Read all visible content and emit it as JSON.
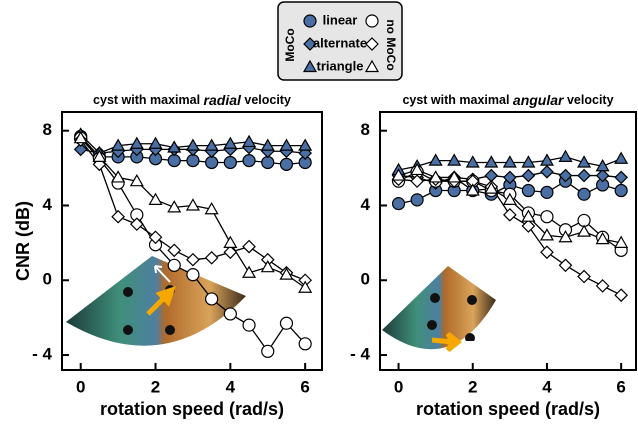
{
  "legend": {
    "groups": [
      "MoCo",
      "no MoCo"
    ],
    "entries": [
      "linear",
      "alternate",
      "triangle"
    ]
  },
  "chart_data": [
    {
      "type": "line",
      "title": [
        "cyst with maximal",
        "radial",
        "velocity"
      ],
      "xlabel": "rotation speed  (rad/s)",
      "ylabel": "CNR  (dB)",
      "x": [
        0,
        0.5,
        1,
        1.5,
        2,
        2.5,
        3,
        3.5,
        4,
        4.5,
        5,
        5.5,
        6
      ],
      "xlim": [
        -0.5,
        6.45
      ],
      "ylim": [
        -4.8,
        9
      ],
      "xticks": [
        0,
        2,
        4,
        6
      ],
      "yticks": [
        8,
        4,
        0,
        {
          "value": -4,
          "label": "- 4"
        }
      ],
      "series": [
        {
          "marker": "circle",
          "filled": true,
          "color": "#4a6fa5",
          "values": [
            7.7,
            6.6,
            6.6,
            6.6,
            6.5,
            6.4,
            6.4,
            6.3,
            6.3,
            6.4,
            6.3,
            6.2,
            6.3
          ]
        },
        {
          "marker": "diamond",
          "filled": true,
          "color": "#4a6fa5",
          "values": [
            7.0,
            6.8,
            6.9,
            7.0,
            7.0,
            7.0,
            7.0,
            6.9,
            7.0,
            7.1,
            6.9,
            6.9,
            6.8
          ]
        },
        {
          "marker": "triangle",
          "filled": true,
          "color": "#4a6fa5",
          "values": [
            7.8,
            6.8,
            7.2,
            7.3,
            7.3,
            7.1,
            7.2,
            7.2,
            7.3,
            7.4,
            7.2,
            7.2,
            7.2
          ]
        },
        {
          "marker": "circle",
          "filled": false,
          "color": "#ffffff",
          "values": [
            7.6,
            6.5,
            5.2,
            3.5,
            1.9,
            0.8,
            0.3,
            -1,
            -1.8,
            -2.4,
            -3.8,
            -2.3,
            -3.4
          ]
        },
        {
          "marker": "diamond",
          "filled": false,
          "color": "#ffffff",
          "values": [
            7.5,
            6.2,
            3.4,
            3.0,
            2.3,
            1.6,
            1.1,
            1.2,
            1.5,
            1.8,
            1.1,
            0.4,
            0.0
          ]
        },
        {
          "marker": "triangle",
          "filled": false,
          "color": "#ffffff",
          "values": [
            7.6,
            6.6,
            5.5,
            5.3,
            4.3,
            3.9,
            4.0,
            3.8,
            2.0,
            0.4,
            0.7,
            0.3,
            -0.4
          ]
        }
      ]
    },
    {
      "type": "line",
      "title": [
        "cyst with maximal",
        "angular",
        "velocity"
      ],
      "xlabel": "rotation speed  (rad/s)",
      "x": [
        0,
        0.5,
        1,
        1.5,
        2,
        2.5,
        3,
        3.5,
        4,
        4.5,
        5,
        5.5,
        6
      ],
      "xlim": [
        -0.5,
        6.4
      ],
      "ylim": [
        -4.8,
        9
      ],
      "xticks": [
        0,
        2,
        4,
        6
      ],
      "yticks": [
        8,
        4,
        0,
        {
          "value": -4,
          "label": "- 4"
        }
      ],
      "series": [
        {
          "marker": "circle",
          "filled": true,
          "color": "#4a6fa5",
          "values": [
            4.1,
            4.3,
            4.8,
            4.8,
            4.8,
            4.6,
            5.1,
            4.8,
            4.7,
            5.3,
            4.6,
            5.1,
            4.8
          ]
        },
        {
          "marker": "diamond",
          "filled": true,
          "color": "#4a6fa5",
          "values": [
            5.6,
            5.5,
            5.2,
            5.5,
            5.4,
            5.6,
            5.5,
            5.6,
            5.8,
            5.6,
            5.6,
            5.6,
            5.5
          ]
        },
        {
          "marker": "triangle",
          "filled": true,
          "color": "#4a6fa5",
          "values": [
            5.9,
            6.1,
            6.4,
            6.4,
            6.3,
            6.3,
            6.3,
            6.3,
            6.4,
            6.6,
            6.3,
            6.1,
            6.5
          ]
        },
        {
          "marker": "circle",
          "filled": false,
          "color": "#ffffff",
          "values": [
            5.3,
            5.8,
            5.3,
            5.3,
            5.3,
            4.8,
            4.6,
            3.6,
            3.4,
            2.7,
            3.2,
            2.3,
            1.6
          ]
        },
        {
          "marker": "diamond",
          "filled": false,
          "color": "#ffffff",
          "values": [
            5.4,
            5.3,
            5.4,
            5.3,
            5.3,
            5.0,
            3.5,
            2.9,
            1.5,
            0.8,
            0.2,
            -0.3,
            -0.8
          ]
        },
        {
          "marker": "triangle",
          "filled": false,
          "color": "#ffffff",
          "values": [
            5.6,
            5.9,
            5.5,
            5.5,
            4.8,
            4.9,
            4.3,
            3.4,
            2.4,
            2.3,
            2.6,
            2.2,
            2.0
          ]
        }
      ]
    }
  ]
}
